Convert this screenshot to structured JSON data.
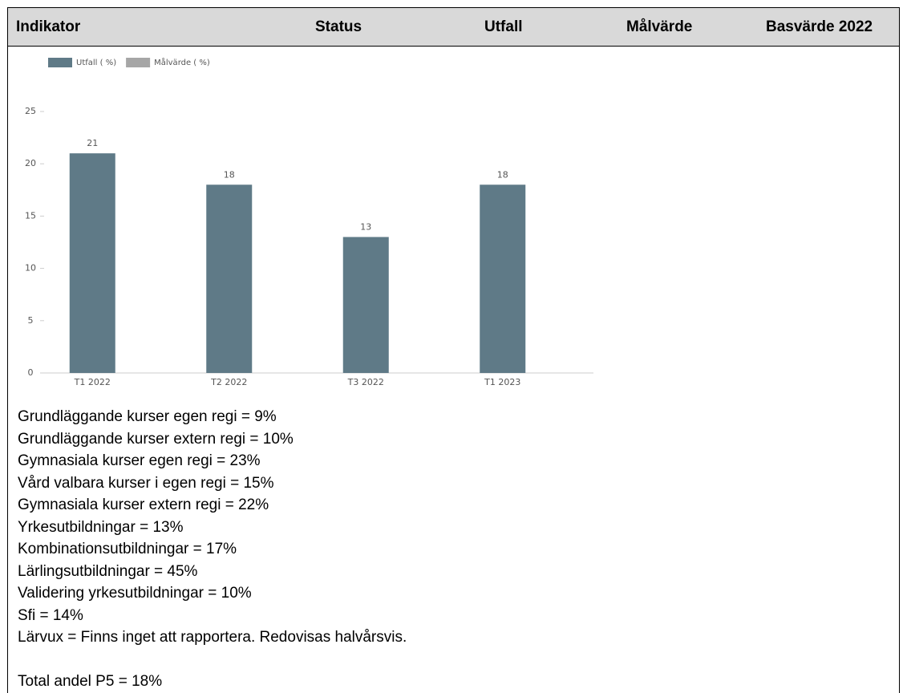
{
  "table": {
    "headers": [
      "Indikator",
      "Status",
      "Utfall",
      "Målvärde",
      "Basvärde 2022"
    ]
  },
  "chart_data": {
    "type": "bar",
    "categories": [
      "T1 2022",
      "T2 2022",
      "T3 2022",
      "T1 2023"
    ],
    "series": [
      {
        "name": "Utfall ( %)",
        "color": "#5f7a87",
        "values": [
          21,
          18,
          13,
          18
        ]
      },
      {
        "name": "Målvärde ( %)",
        "color": "#a6a6a6",
        "values": [
          null,
          null,
          null,
          null
        ]
      }
    ],
    "ylim": [
      0,
      25
    ],
    "yticks": [
      0,
      5,
      10,
      15,
      20,
      25
    ],
    "grid": false,
    "legend": "top-left"
  },
  "notes": [
    "Grundläggande kurser egen regi = 9%",
    "Grundläggande kurser extern regi = 10%",
    "Gymnasiala kurser egen regi = 23%",
    "Vård valbara kurser i egen regi = 15%",
    "Gymnasiala kurser extern regi = 22%",
    "Yrkesutbildningar = 13%",
    "Kombinationsutbildningar = 17%",
    "Lärlingsutbildningar = 45%",
    "Validering yrkesutbildningar = 10%",
    "Sfi = 14%",
    "Lärvux = Finns inget att rapportera. Redovisas halvårsvis."
  ],
  "total": "Total andel P5 = 18%"
}
